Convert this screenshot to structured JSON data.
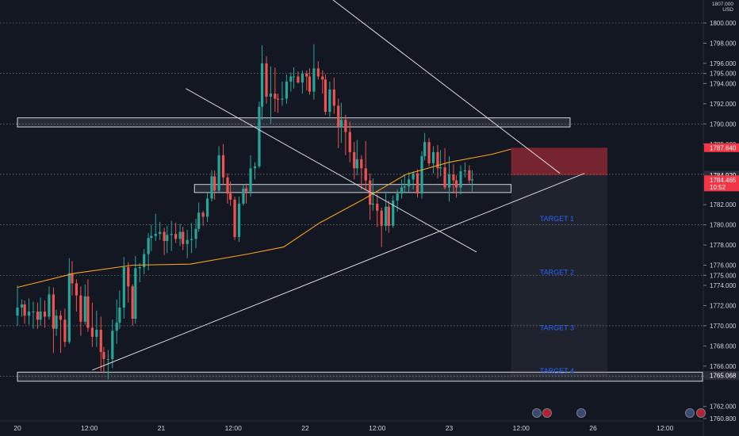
{
  "header": {
    "price_scale_top": "1807.000",
    "currency": "USD"
  },
  "chart_data": {
    "type": "candlestick",
    "ylim": [
      1760,
      1807
    ],
    "price_axis_labels": [
      "1800.000",
      "1798.000",
      "1796.000",
      "1795.000",
      "1794.000",
      "1792.000",
      "1790.000",
      "1788.000",
      "1785.000",
      "1782.000",
      "1780.000",
      "1778.000",
      "1776.000",
      "1775.000",
      "1774.000",
      "1772.000",
      "1770.000",
      "1768.000",
      "1766.000",
      "1765.000",
      "1762.000",
      "1760.800"
    ],
    "time_axis_labels": [
      "20",
      "12:00",
      "21",
      "12:00",
      "22",
      "12:00",
      "23",
      "12:00",
      "26",
      "12:00"
    ],
    "dotted_levels": [
      1800,
      1795,
      1790,
      1785,
      1780,
      1775,
      1770,
      1765
    ],
    "highlighted_prices": [
      {
        "label": "1787.640",
        "value": 1787.64,
        "color": "#f23645"
      },
      {
        "label": "1784.920",
        "value": 1784.92,
        "color": "#2a2e39"
      },
      {
        "label": "1784.465",
        "value": 1784.465,
        "color": "#f23645",
        "sub": "10:52"
      },
      {
        "label": "1765.068",
        "value": 1765.068,
        "color": "#2a2e39"
      }
    ],
    "zones": [
      {
        "from": 1789.7,
        "to": 1790.6,
        "start_day": 0.0,
        "end_day": 3.84
      },
      {
        "from": 1783.2,
        "to": 1784.0,
        "start_day": 1.23,
        "end_day": 3.43
      },
      {
        "from": 1764.5,
        "to": 1765.4,
        "start_day": 0.0,
        "end_day": 5.0
      }
    ],
    "trade_box": {
      "entry": 1784.92,
      "stop": 1787.64,
      "target_low": 1765.0,
      "start_day": 3.43,
      "end_day": 4.1
    },
    "targets": [
      {
        "label": "TARGET  1",
        "value": 1780.6
      },
      {
        "label": "TARGET  2",
        "value": 1775.3
      },
      {
        "label": "TARGET  3",
        "value": 1769.8
      },
      {
        "label": "TARGET  4",
        "value": 1765.5
      }
    ],
    "trendlines": [
      {
        "x1": 1.76,
        "y1": 1807.0,
        "x2": 3.77,
        "y2": 1785.1
      },
      {
        "x1": 1.17,
        "y1": 1793.5,
        "x2": 3.19,
        "y2": 1777.3
      },
      {
        "x1": 0.52,
        "y1": 1765.6,
        "x2": 3.94,
        "y2": 1785.1
      }
    ],
    "moving_average": [
      [
        0.0,
        1773.8
      ],
      [
        0.4,
        1775.2
      ],
      [
        0.8,
        1776.0
      ],
      [
        1.2,
        1776.1
      ],
      [
        1.6,
        1777.1
      ],
      [
        1.85,
        1777.8
      ],
      [
        2.1,
        1780.2
      ],
      [
        2.4,
        1782.5
      ],
      [
        2.7,
        1785.0
      ],
      [
        3.0,
        1786.2
      ],
      [
        3.3,
        1787.0
      ],
      [
        3.43,
        1787.5
      ]
    ],
    "candles": [
      [
        0.0,
        1771.0,
        1774.0,
        1770.0,
        1771.8
      ],
      [
        0.03,
        1771.8,
        1772.6,
        1770.9,
        1772.1
      ],
      [
        0.05,
        1772.1,
        1772.5,
        1770.2,
        1771.0
      ],
      [
        0.08,
        1771.0,
        1772.7,
        1770.1,
        1771.4
      ],
      [
        0.11,
        1771.4,
        1772.4,
        1769.7,
        1771.4
      ],
      [
        0.14,
        1771.4,
        1772.3,
        1769.7,
        1770.6
      ],
      [
        0.16,
        1770.6,
        1772.8,
        1770.0,
        1771.4
      ],
      [
        0.19,
        1771.4,
        1772.5,
        1769.8,
        1770.9
      ],
      [
        0.22,
        1770.9,
        1773.9,
        1770.6,
        1773.1
      ],
      [
        0.25,
        1773.1,
        1773.8,
        1767.3,
        1769.7
      ],
      [
        0.27,
        1769.7,
        1771.6,
        1769.0,
        1771.0
      ],
      [
        0.3,
        1771.0,
        1771.5,
        1767.3,
        1770.6
      ],
      [
        0.33,
        1770.6,
        1771.7,
        1767.9,
        1768.4
      ],
      [
        0.36,
        1768.4,
        1776.7,
        1768.2,
        1775.2
      ],
      [
        0.38,
        1775.2,
        1776.4,
        1773.0,
        1774.2
      ],
      [
        0.41,
        1774.2,
        1774.6,
        1771.4,
        1773.0
      ],
      [
        0.44,
        1773.0,
        1773.9,
        1769.0,
        1770.4
      ],
      [
        0.47,
        1770.4,
        1774.1,
        1770.1,
        1772.9
      ],
      [
        0.49,
        1772.9,
        1774.6,
        1769.4,
        1769.8
      ],
      [
        0.52,
        1769.8,
        1772.3,
        1767.9,
        1768.9
      ],
      [
        0.55,
        1768.9,
        1771.5,
        1767.9,
        1769.6
      ],
      [
        0.58,
        1769.6,
        1770.9,
        1765.5,
        1767.4
      ],
      [
        0.6,
        1767.4,
        1767.9,
        1765.3,
        1766.7
      ],
      [
        0.63,
        1766.7,
        1767.6,
        1764.7,
        1766.7
      ],
      [
        0.66,
        1766.7,
        1770.6,
        1765.8,
        1769.5
      ],
      [
        0.69,
        1769.5,
        1772.6,
        1768.2,
        1770.3
      ],
      [
        0.71,
        1770.3,
        1773.5,
        1769.7,
        1771.8
      ],
      [
        0.74,
        1771.8,
        1776.8,
        1770.7,
        1775.8
      ],
      [
        0.77,
        1775.8,
        1776.3,
        1772.3,
        1773.9
      ],
      [
        0.8,
        1773.9,
        1774.1,
        1770.0,
        1770.7
      ],
      [
        0.82,
        1770.7,
        1776.9,
        1770.2,
        1775.7
      ],
      [
        0.85,
        1775.7,
        1776.2,
        1774.3,
        1775.8
      ],
      [
        0.88,
        1775.8,
        1777.6,
        1775.1,
        1777.1
      ],
      [
        0.91,
        1777.1,
        1779.2,
        1775.5,
        1778.7
      ],
      [
        0.93,
        1778.7,
        1780.0,
        1777.4,
        1778.9
      ],
      [
        0.96,
        1778.9,
        1781.1,
        1778.4,
        1779.1
      ],
      [
        0.99,
        1779.1,
        1780.3,
        1778.5,
        1779.3
      ],
      [
        1.02,
        1779.3,
        1779.7,
        1777.0,
        1778.4
      ],
      [
        1.04,
        1778.4,
        1779.9,
        1777.2,
        1779.0
      ],
      [
        1.07,
        1779.0,
        1780.4,
        1777.4,
        1779.1
      ],
      [
        1.1,
        1779.1,
        1780.2,
        1778.2,
        1778.6
      ],
      [
        1.13,
        1778.6,
        1780.1,
        1777.9,
        1779.3
      ],
      [
        1.15,
        1779.3,
        1779.8,
        1777.5,
        1778.1
      ],
      [
        1.18,
        1778.1,
        1779.5,
        1776.7,
        1778.5
      ],
      [
        1.21,
        1778.5,
        1780.2,
        1777.2,
        1778.6
      ],
      [
        1.24,
        1778.6,
        1780.6,
        1777.7,
        1779.6
      ],
      [
        1.26,
        1779.6,
        1782.2,
        1779.3,
        1781.2
      ],
      [
        1.29,
        1781.2,
        1781.4,
        1779.9,
        1780.8
      ],
      [
        1.32,
        1780.8,
        1783.2,
        1780.3,
        1782.6
      ],
      [
        1.35,
        1782.6,
        1785.4,
        1782.3,
        1784.8
      ],
      [
        1.37,
        1784.8,
        1785.4,
        1782.5,
        1783.4
      ],
      [
        1.4,
        1783.4,
        1787.8,
        1783.2,
        1786.9
      ],
      [
        1.43,
        1786.9,
        1788.0,
        1784.0,
        1784.7
      ],
      [
        1.46,
        1784.7,
        1785.1,
        1782.1,
        1783.1
      ],
      [
        1.48,
        1783.1,
        1784.3,
        1781.9,
        1782.5
      ],
      [
        1.51,
        1782.5,
        1782.8,
        1778.5,
        1778.8
      ],
      [
        1.54,
        1778.8,
        1782.8,
        1778.3,
        1782.1
      ],
      [
        1.57,
        1782.1,
        1784.0,
        1781.9,
        1783.6
      ],
      [
        1.59,
        1783.6,
        1784.1,
        1782.1,
        1783.3
      ],
      [
        1.62,
        1783.3,
        1786.9,
        1782.8,
        1785.6
      ],
      [
        1.65,
        1785.6,
        1786.2,
        1784.5,
        1785.8
      ],
      [
        1.68,
        1785.8,
        1792.2,
        1785.6,
        1791.7
      ],
      [
        1.7,
        1791.7,
        1797.8,
        1790.4,
        1796.0
      ],
      [
        1.73,
        1796.0,
        1796.7,
        1792.0,
        1792.7
      ],
      [
        1.76,
        1792.7,
        1795.7,
        1790.0,
        1793.0
      ],
      [
        1.79,
        1793.0,
        1795.6,
        1791.2,
        1792.5
      ],
      [
        1.81,
        1792.5,
        1793.0,
        1791.1,
        1792.4
      ],
      [
        1.84,
        1792.4,
        1794.2,
        1791.8,
        1792.5
      ],
      [
        1.87,
        1792.5,
        1794.9,
        1792.0,
        1794.2
      ],
      [
        1.9,
        1794.2,
        1795.1,
        1793.2,
        1794.7
      ],
      [
        1.92,
        1794.7,
        1795.6,
        1793.5,
        1794.7
      ],
      [
        1.95,
        1794.7,
        1795.2,
        1794.0,
        1794.1
      ],
      [
        1.98,
        1794.1,
        1795.3,
        1793.0,
        1795.0
      ],
      [
        2.01,
        1795.0,
        1795.3,
        1793.3,
        1794.7
      ],
      [
        2.03,
        1794.7,
        1795.5,
        1792.9,
        1793.2
      ],
      [
        2.06,
        1793.2,
        1797.9,
        1792.4,
        1795.5
      ],
      [
        2.09,
        1795.5,
        1796.2,
        1794.4,
        1794.7
      ],
      [
        2.12,
        1794.7,
        1795.3,
        1793.0,
        1794.4
      ],
      [
        2.14,
        1794.4,
        1794.9,
        1790.9,
        1791.2
      ],
      [
        2.17,
        1791.2,
        1794.2,
        1790.7,
        1793.4
      ],
      [
        2.2,
        1793.4,
        1794.6,
        1791.0,
        1791.8
      ],
      [
        2.23,
        1791.8,
        1792.5,
        1787.6,
        1789.7
      ],
      [
        2.25,
        1789.7,
        1792.1,
        1788.1,
        1790.4
      ],
      [
        2.28,
        1790.4,
        1790.9,
        1786.9,
        1789.2
      ],
      [
        2.31,
        1789.2,
        1790.2,
        1786.2,
        1787.2
      ],
      [
        2.34,
        1787.2,
        1788.2,
        1784.5,
        1785.6
      ],
      [
        2.36,
        1785.6,
        1788.4,
        1784.9,
        1786.5
      ],
      [
        2.39,
        1786.5,
        1786.9,
        1783.5,
        1785.6
      ],
      [
        2.42,
        1785.6,
        1788.3,
        1783.5,
        1784.4
      ],
      [
        2.45,
        1784.4,
        1785.1,
        1780.5,
        1782.0
      ],
      [
        2.47,
        1782.0,
        1784.6,
        1781.4,
        1782.1
      ],
      [
        2.5,
        1782.1,
        1783.0,
        1779.8,
        1781.4
      ],
      [
        2.53,
        1781.4,
        1781.7,
        1777.8,
        1779.9
      ],
      [
        2.56,
        1779.9,
        1783.3,
        1779.4,
        1781.8
      ],
      [
        2.58,
        1781.8,
        1782.4,
        1779.2,
        1779.9
      ],
      [
        2.61,
        1779.9,
        1782.9,
        1779.7,
        1782.4
      ],
      [
        2.64,
        1782.4,
        1783.5,
        1781.3,
        1783.1
      ],
      [
        2.67,
        1783.1,
        1784.5,
        1782.6,
        1783.7
      ],
      [
        2.69,
        1783.7,
        1785.0,
        1783.2,
        1783.8
      ],
      [
        2.72,
        1783.8,
        1785.2,
        1783.2,
        1784.5
      ],
      [
        2.75,
        1784.5,
        1785.3,
        1783.5,
        1785.1
      ],
      [
        2.78,
        1785.1,
        1785.5,
        1782.7,
        1783.1
      ],
      [
        2.81,
        1783.1,
        1787.3,
        1782.6,
        1786.8
      ],
      [
        2.83,
        1786.8,
        1789.1,
        1786.4,
        1788.2
      ],
      [
        2.86,
        1788.2,
        1788.6,
        1785.8,
        1786.1
      ],
      [
        2.89,
        1786.1,
        1787.8,
        1785.1,
        1787.2
      ],
      [
        2.92,
        1787.2,
        1787.9,
        1784.6,
        1785.6
      ],
      [
        2.94,
        1785.6,
        1787.4,
        1784.8,
        1785.7
      ],
      [
        2.97,
        1785.7,
        1787.6,
        1783.5,
        1783.7
      ],
      [
        3.0,
        1783.7,
        1786.8,
        1782.3,
        1785.0
      ],
      [
        3.03,
        1785.0,
        1786.0,
        1783.1,
        1784.4
      ],
      [
        3.05,
        1784.4,
        1784.9,
        1782.7,
        1783.7
      ],
      [
        3.08,
        1783.7,
        1785.9,
        1783.0,
        1785.3
      ],
      [
        3.11,
        1785.3,
        1786.2,
        1784.7,
        1785.4
      ],
      [
        3.14,
        1785.4,
        1785.9,
        1784.1,
        1784.4
      ],
      [
        3.16,
        1784.4,
        1785.4,
        1783.3,
        1784.5
      ]
    ]
  },
  "colors": {
    "background": "#131722",
    "grid_dotted": "#b2b5be",
    "up": "#26a69a",
    "down": "#ef5350",
    "trendline": "#d9d9d9",
    "moving_average": "#f7a21b",
    "zone_border": "#d1d4dc",
    "target_text": "#2962ff"
  }
}
